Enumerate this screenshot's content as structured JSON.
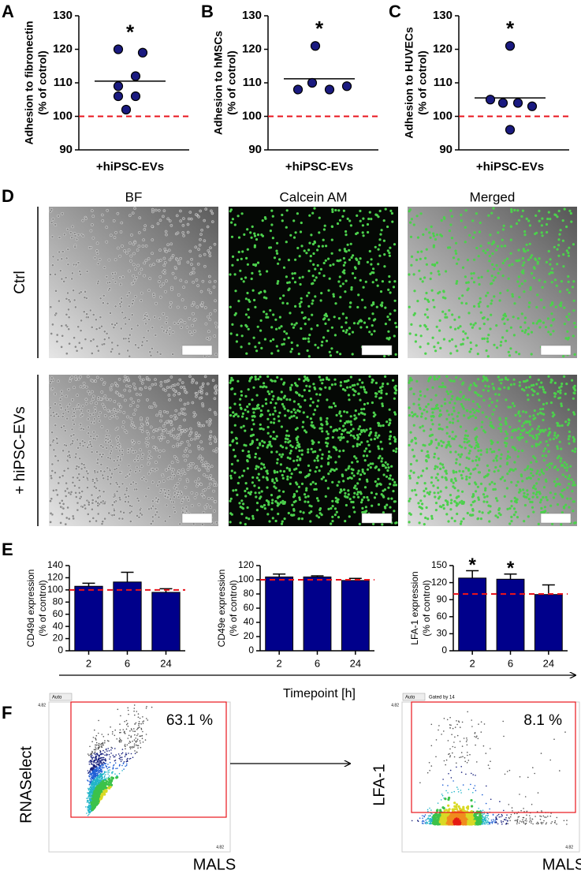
{
  "panel_labels": [
    "A",
    "B",
    "C",
    "D",
    "E",
    "F"
  ],
  "chart_data": [
    {
      "type": "dot",
      "ylabel": [
        "Adhesion to fibronectin",
        "(% of cotrol)"
      ],
      "category": "+hiPSC-EVs",
      "values": [
        120,
        119,
        112,
        109,
        106,
        106,
        102
      ],
      "mean": 110.5,
      "reference": 100,
      "annotation": "*",
      "color": "#1a1a80",
      "reference_color": "#e8141c",
      "ylim": [
        90,
        130
      ],
      "yticks": [
        90,
        100,
        110,
        120,
        130
      ]
    },
    {
      "type": "dot",
      "ylabel": [
        "Adhesion to hMSCs",
        "(% of cotrol)"
      ],
      "category": "+hiPSC-EVs",
      "values": [
        121,
        108,
        110,
        108,
        109
      ],
      "mean": 111.2,
      "reference": 100,
      "annotation": "*",
      "color": "#1a1a80",
      "reference_color": "#e8141c",
      "ylim": [
        90,
        130
      ],
      "yticks": [
        90,
        100,
        110,
        120,
        130
      ]
    },
    {
      "type": "dot",
      "ylabel": [
        "Adhesion to HUVECs",
        "(% of cotrol)"
      ],
      "category": "+hiPSC-EVs",
      "values": [
        121,
        105,
        104,
        104,
        103,
        96
      ],
      "mean": 105.5,
      "reference": 100,
      "annotation": "*",
      "color": "#1a1a80",
      "reference_color": "#e8141c",
      "ylim": [
        90,
        130
      ],
      "yticks": [
        90,
        100,
        110,
        120,
        130
      ]
    },
    {
      "type": "bar",
      "ylabel": [
        "CD49d expression",
        "(% of control)"
      ],
      "categories": [
        "2",
        "6",
        "24"
      ],
      "values": [
        106,
        113,
        96
      ],
      "errors": [
        5,
        16,
        6
      ],
      "annotations": [
        null,
        null,
        null
      ],
      "reference": 100,
      "color": "#00008b",
      "reference_color": "#e8141c",
      "ylim": [
        0,
        140
      ],
      "yticks": [
        0,
        20,
        40,
        60,
        80,
        100,
        120,
        140
      ]
    },
    {
      "type": "bar",
      "ylabel": [
        "CD49e expression",
        "(% of control)"
      ],
      "categories": [
        "2",
        "6",
        "24"
      ],
      "values": [
        104,
        104,
        99
      ],
      "errors": [
        4,
        1.5,
        3
      ],
      "annotations": [
        null,
        null,
        null
      ],
      "reference": 100,
      "color": "#00008b",
      "reference_color": "#e8141c",
      "ylim": [
        0,
        120
      ],
      "yticks": [
        0,
        20,
        40,
        60,
        80,
        100,
        120
      ]
    },
    {
      "type": "bar",
      "ylabel": [
        "LFA-1 expression",
        "(% of control)"
      ],
      "categories": [
        "2",
        "6",
        "24"
      ],
      "values": [
        128,
        126,
        99
      ],
      "errors": [
        13,
        9,
        17
      ],
      "annotations": [
        "*",
        "*",
        null
      ],
      "reference": 100,
      "color": "#00008b",
      "reference_color": "#e8141c",
      "ylim": [
        0,
        150
      ],
      "yticks": [
        0,
        30,
        60,
        90,
        120,
        150
      ]
    }
  ],
  "panel_d": {
    "columns": [
      "BF",
      "Calcein AM",
      "Merged"
    ],
    "rows": [
      "Ctrl",
      "+ hiPSC-EVs"
    ]
  },
  "panel_e": {
    "xlabel": "Timepoint [h]"
  },
  "panel_f": {
    "plots": [
      {
        "ylabel": "RNASelect",
        "xlabel": "MALS",
        "gate": "63.1 %",
        "dropdown": "Auto",
        "axis_max": "4.82"
      },
      {
        "ylabel": "LFA-1",
        "xlabel": "MALS",
        "gate": "8.1 %",
        "dropdown": "Auto",
        "note": "Gated by 14",
        "axis_max": "4.82"
      }
    ]
  }
}
